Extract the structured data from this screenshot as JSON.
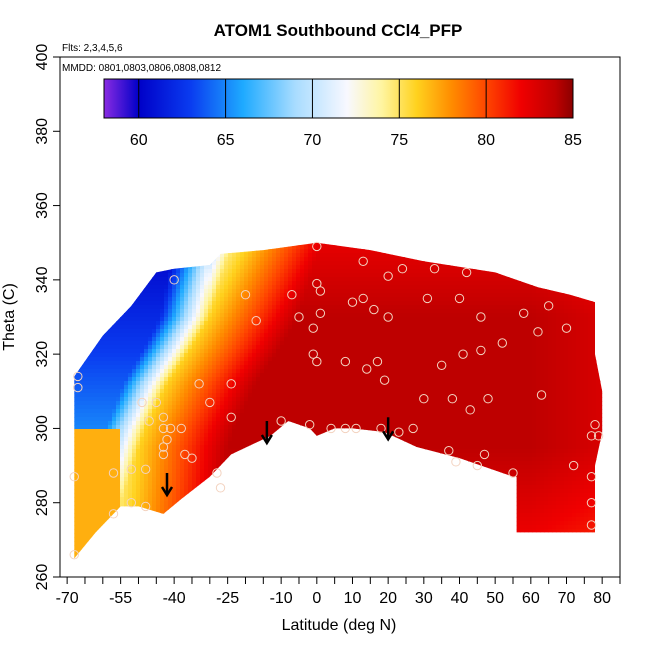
{
  "chart_data": {
    "type": "heatmap",
    "title": "ATOM1 Southbound CCl4_PFP",
    "flights_note": "Flts: 2,3,4,5,6",
    "dates_note": "MMDD: 0801,0803,0806,0808,0812",
    "xlabel": "Latitude (deg N)",
    "ylabel": "Theta (C)",
    "xlim": [
      -72,
      85
    ],
    "ylim": [
      260,
      400
    ],
    "x_ticks": [
      -70,
      -55,
      -40,
      -25,
      -10,
      0,
      10,
      20,
      30,
      40,
      50,
      60,
      70,
      80
    ],
    "x_tick_labels": [
      "-70",
      "-55",
      "-40",
      "-25",
      "-10",
      "0",
      "10",
      "20",
      "30",
      "40",
      "50",
      "60",
      "70",
      "80"
    ],
    "x_minor_ticks": [
      -65,
      -60,
      -50,
      -45,
      -35,
      -30,
      -20,
      -15,
      -5,
      5,
      15,
      25,
      35,
      45,
      55,
      65,
      75,
      85
    ],
    "y_ticks": [
      260,
      280,
      300,
      320,
      340,
      360,
      380,
      400
    ],
    "y_tick_labels": [
      "260",
      "280",
      "300",
      "320",
      "340",
      "360",
      "380",
      "400"
    ],
    "colorbar": {
      "range": [
        58,
        85
      ],
      "ticks": [
        60,
        65,
        70,
        75,
        80,
        85
      ],
      "tick_labels": [
        "60",
        "65",
        "70",
        "75",
        "80",
        "85"
      ],
      "stops": [
        {
          "v": 58,
          "c": "#8a2be2"
        },
        {
          "v": 60,
          "c": "#0000c8"
        },
        {
          "v": 63,
          "c": "#0a3cf0"
        },
        {
          "v": 66,
          "c": "#1eaaff"
        },
        {
          "v": 69,
          "c": "#a8dcff"
        },
        {
          "v": 72,
          "c": "#f8f8ff"
        },
        {
          "v": 74,
          "c": "#fff5a0"
        },
        {
          "v": 76,
          "c": "#ffd21e"
        },
        {
          "v": 78,
          "c": "#ff8c00"
        },
        {
          "v": 80,
          "c": "#ff4600"
        },
        {
          "v": 82,
          "c": "#f00000"
        },
        {
          "v": 84,
          "c": "#be0000"
        },
        {
          "v": 85,
          "c": "#8b0000"
        }
      ]
    },
    "field_boundary": [
      [
        -68,
        265
      ],
      [
        -62,
        272
      ],
      [
        -55,
        279
      ],
      [
        -50,
        279
      ],
      [
        -43,
        277
      ],
      [
        -38,
        281
      ],
      [
        -30,
        287
      ],
      [
        -24,
        293
      ],
      [
        -13,
        298
      ],
      [
        -8,
        302
      ],
      [
        -2,
        300
      ],
      [
        0,
        298
      ],
      [
        5,
        300
      ],
      [
        10,
        300
      ],
      [
        19,
        299
      ],
      [
        28,
        295
      ],
      [
        40,
        292
      ],
      [
        55,
        287
      ],
      [
        56,
        287
      ],
      [
        56,
        272
      ],
      [
        78,
        272
      ],
      [
        78,
        290
      ],
      [
        80,
        299
      ],
      [
        80,
        310
      ],
      [
        78,
        320
      ],
      [
        78,
        334
      ],
      [
        71,
        336
      ],
      [
        62,
        338
      ],
      [
        50,
        342
      ],
      [
        30,
        345
      ],
      [
        15,
        348
      ],
      [
        0,
        350
      ],
      [
        -15,
        348
      ],
      [
        -27,
        347
      ],
      [
        -30,
        344
      ],
      [
        -40,
        343
      ],
      [
        -45,
        342
      ],
      [
        -52,
        333
      ],
      [
        -60,
        325
      ],
      [
        -68,
        314
      ],
      [
        -68,
        310
      ]
    ],
    "front": {
      "type": "boundary between cold (low-value) southern region and warm northern region",
      "path": [
        [
          -48,
          300
        ],
        [
          -42,
          312
        ],
        [
          -35,
          322
        ],
        [
          -30,
          330
        ],
        [
          -27,
          340
        ]
      ]
    },
    "arrows_lat": [
      -42,
      -14,
      20
    ],
    "arrows_theta_top": [
      288,
      302,
      303
    ],
    "sample_points": [
      [
        -68,
        266
      ],
      [
        -68,
        287
      ],
      [
        -67,
        314
      ],
      [
        -67,
        311
      ],
      [
        -57,
        277
      ],
      [
        -57,
        288
      ],
      [
        -52,
        280
      ],
      [
        -52,
        289
      ],
      [
        -48,
        279
      ],
      [
        -48,
        289
      ],
      [
        -49,
        307
      ],
      [
        -47,
        302
      ],
      [
        -45,
        307
      ],
      [
        -43,
        303
      ],
      [
        -43,
        300
      ],
      [
        -42,
        297
      ],
      [
        -43,
        295
      ],
      [
        -43,
        293
      ],
      [
        -41,
        300
      ],
      [
        -38,
        300
      ],
      [
        -37,
        293
      ],
      [
        -35,
        292
      ],
      [
        -33,
        312
      ],
      [
        -30,
        307
      ],
      [
        -28,
        288
      ],
      [
        -27,
        284
      ],
      [
        -24,
        312
      ],
      [
        -24,
        303
      ],
      [
        -20,
        336
      ],
      [
        -17,
        329
      ],
      [
        -10,
        302
      ],
      [
        -7,
        336
      ],
      [
        -5,
        330
      ],
      [
        -2,
        301
      ],
      [
        -1,
        327
      ],
      [
        -1,
        320
      ],
      [
        0,
        318
      ],
      [
        0,
        339
      ],
      [
        0,
        349
      ],
      [
        1,
        337
      ],
      [
        1,
        331
      ],
      [
        4,
        300
      ],
      [
        8,
        300
      ],
      [
        8,
        318
      ],
      [
        10,
        334
      ],
      [
        11,
        300
      ],
      [
        13,
        345
      ],
      [
        13,
        335
      ],
      [
        14,
        316
      ],
      [
        16,
        332
      ],
      [
        17,
        318
      ],
      [
        18,
        300
      ],
      [
        19,
        313
      ],
      [
        20,
        341
      ],
      [
        20,
        330
      ],
      [
        23,
        299
      ],
      [
        24,
        343
      ],
      [
        27,
        300
      ],
      [
        30,
        308
      ],
      [
        31,
        335
      ],
      [
        33,
        343
      ],
      [
        35,
        317
      ],
      [
        37,
        294
      ],
      [
        38,
        308
      ],
      [
        39,
        291
      ],
      [
        40,
        335
      ],
      [
        41,
        320
      ],
      [
        43,
        305
      ],
      [
        45,
        290
      ],
      [
        46,
        321
      ],
      [
        46,
        330
      ],
      [
        47,
        293
      ],
      [
        48,
        308
      ],
      [
        52,
        323
      ],
      [
        55,
        288
      ],
      [
        58,
        331
      ],
      [
        62,
        326
      ],
      [
        63,
        309
      ],
      [
        65,
        333
      ],
      [
        70,
        327
      ],
      [
        72,
        290
      ],
      [
        77,
        298
      ],
      [
        77,
        287
      ],
      [
        77,
        280
      ],
      [
        77,
        274
      ],
      [
        78,
        301
      ],
      [
        79,
        298
      ],
      [
        42,
        342
      ],
      [
        -40,
        340
      ]
    ]
  }
}
